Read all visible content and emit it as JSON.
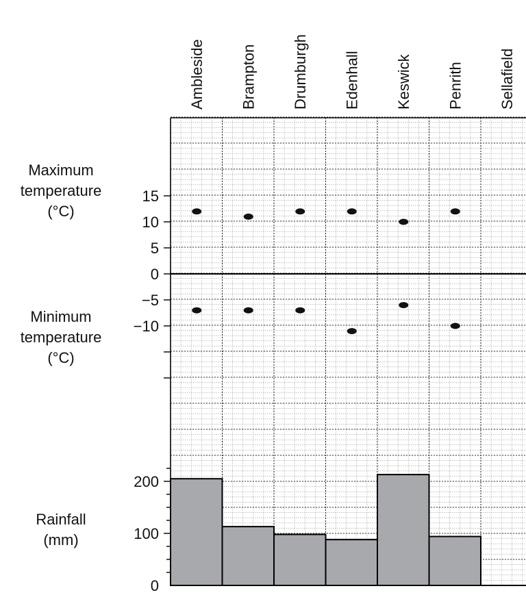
{
  "chart_data": {
    "type": "scatter",
    "categories": [
      "Ambleside",
      "Brampton",
      "Drumburgh",
      "Edenhall",
      "Keswick",
      "Penrith",
      "Sellafield"
    ],
    "panels": [
      {
        "type": "scatter",
        "ylabel": [
          "Maximum",
          "temperature",
          "(°C)"
        ],
        "ylim": [
          0,
          15
        ],
        "yticks": [
          0,
          5,
          10,
          15
        ],
        "series": [
          {
            "values": [
              12,
              11,
              12,
              12,
              10,
              12,
              null
            ]
          }
        ]
      },
      {
        "type": "scatter",
        "ylabel": [
          "Minimum",
          "temperature",
          "(°C)"
        ],
        "ylim": [
          -15,
          0
        ],
        "yticks": [
          -5,
          -10
        ],
        "tick_labels": [
          "−5",
          "−10"
        ],
        "series": [
          {
            "values": [
              -7,
              -7,
              -7,
              -11,
              -6,
              -10,
              null
            ]
          }
        ]
      },
      {
        "type": "bar",
        "ylabel": [
          "Rainfall",
          "(mm)"
        ],
        "ylim": [
          0,
          250
        ],
        "yticks": [
          0,
          100,
          200
        ],
        "series": [
          {
            "values": [
              205,
              113,
              98,
              88,
              213,
              94,
              null
            ]
          }
        ]
      }
    ],
    "grid": true,
    "colors": {
      "bar": "#a7a9ac",
      "marker": "#111111",
      "grid": "#888888"
    }
  }
}
